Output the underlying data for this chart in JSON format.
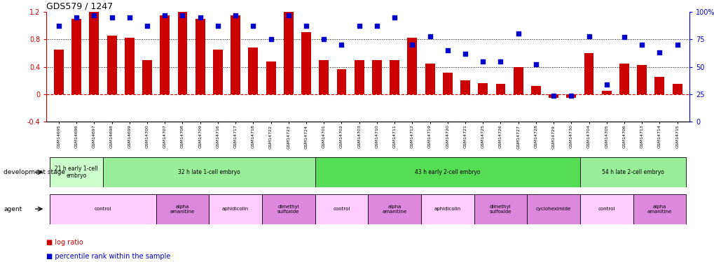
{
  "title": "GDS579 / 1247",
  "samples": [
    "GSM14695",
    "GSM14696",
    "GSM14697",
    "GSM14698",
    "GSM14699",
    "GSM14700",
    "GSM14707",
    "GSM14708",
    "GSM14709",
    "GSM14716",
    "GSM14717",
    "GSM14718",
    "GSM14722",
    "GSM14723",
    "GSM14724",
    "GSM14701",
    "GSM14702",
    "GSM14703",
    "GSM14710",
    "GSM14711",
    "GSM14712",
    "GSM14719",
    "GSM14720",
    "GSM14721",
    "GSM14725",
    "GSM14726",
    "GSM14727",
    "GSM14728",
    "GSM14729",
    "GSM14730",
    "GSM14704",
    "GSM14705",
    "GSM14706",
    "GSM14713",
    "GSM14714",
    "GSM14715"
  ],
  "log_ratio": [
    0.65,
    1.1,
    1.2,
    0.85,
    0.82,
    0.5,
    1.15,
    1.2,
    1.1,
    0.65,
    1.15,
    0.68,
    0.48,
    1.2,
    0.9,
    0.5,
    0.37,
    0.5,
    0.5,
    0.5,
    0.82,
    0.45,
    0.32,
    0.2,
    0.16,
    0.15,
    0.4,
    0.12,
    -0.05,
    -0.05,
    0.6,
    0.05,
    0.45,
    0.43,
    0.25,
    0.15
  ],
  "percentile": [
    87,
    95,
    97,
    95,
    95,
    87,
    97,
    97,
    95,
    87,
    97,
    87,
    75,
    97,
    87,
    75,
    70,
    87,
    87,
    95,
    70,
    78,
    65,
    62,
    55,
    55,
    80,
    52,
    24,
    24,
    78,
    34,
    77,
    70,
    63,
    70
  ],
  "bar_color": "#cc0000",
  "dot_color": "#0000cc",
  "ylim_left": [
    -0.4,
    1.2
  ],
  "ylim_right": [
    0,
    100
  ],
  "yticks_left": [
    -0.4,
    0.0,
    0.4,
    0.8,
    1.2
  ],
  "yticks_right": [
    0,
    25,
    50,
    75,
    100
  ],
  "dotted_lines": [
    0.4,
    0.8
  ],
  "stages": [
    {
      "text": "21 h early 1-cell\nembryo",
      "start": 0,
      "end": 3,
      "color": "#ccffcc"
    },
    {
      "text": "32 h late 1-cell embryo",
      "start": 3,
      "end": 15,
      "color": "#99ee99"
    },
    {
      "text": "43 h early 2-cell embryo",
      "start": 15,
      "end": 30,
      "color": "#55dd55"
    },
    {
      "text": "54 h late 2-cell embryo",
      "start": 30,
      "end": 36,
      "color": "#99ee99"
    }
  ],
  "agents": [
    {
      "text": "control",
      "start": 0,
      "end": 6,
      "color": "#ffccff"
    },
    {
      "text": "alpha\namanitine",
      "start": 6,
      "end": 9,
      "color": "#dd88dd"
    },
    {
      "text": "aphidicolin",
      "start": 9,
      "end": 12,
      "color": "#ffccff"
    },
    {
      "text": "dimethyl\nsulfoxide",
      "start": 12,
      "end": 15,
      "color": "#dd88dd"
    },
    {
      "text": "control",
      "start": 15,
      "end": 18,
      "color": "#ffccff"
    },
    {
      "text": "alpha\namanitine",
      "start": 18,
      "end": 21,
      "color": "#dd88dd"
    },
    {
      "text": "aphidicolin",
      "start": 21,
      "end": 24,
      "color": "#ffccff"
    },
    {
      "text": "dimethyl\nsulfoxide",
      "start": 24,
      "end": 27,
      "color": "#dd88dd"
    },
    {
      "text": "cycloheximide",
      "start": 27,
      "end": 30,
      "color": "#dd88dd"
    },
    {
      "text": "control",
      "start": 30,
      "end": 33,
      "color": "#ffccff"
    },
    {
      "text": "alpha\namanitine",
      "start": 33,
      "end": 36,
      "color": "#dd88dd"
    }
  ],
  "stage_label": "development stage",
  "agent_label": "agent",
  "legend_bar": "log ratio",
  "legend_dot": "percentile rank within the sample"
}
